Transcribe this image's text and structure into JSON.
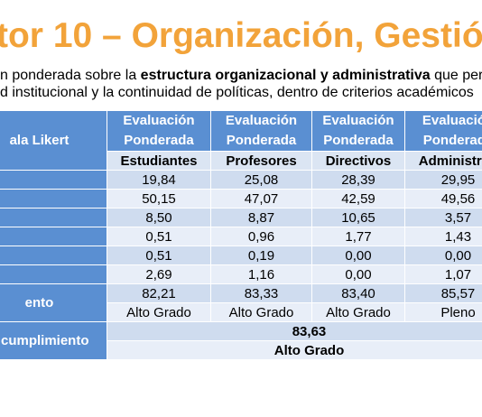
{
  "header": {
    "title": "tor 10 – Organización, Gestió",
    "subtitle_line1": [
      "n ponderada sobre la ",
      "estructura organizacional y administrativa",
      " que perm"
    ],
    "subtitle_line2": "d institucional y la continuidad de políticas, dentro de criterios académicos"
  },
  "table": {
    "corner": "ala Likert",
    "group_headers": [
      "Evaluación Ponderada",
      "Evaluación Ponderada",
      "Evaluación Ponderada",
      "Evaluación Ponderada"
    ],
    "columns": [
      "Estudiantes",
      "Profesores",
      "Directivos",
      "Administrati"
    ],
    "rows": [
      [
        "19,84",
        "25,08",
        "28,39",
        "29,95"
      ],
      [
        "50,15",
        "47,07",
        "42,59",
        "49,56"
      ],
      [
        "8,50",
        "8,87",
        "10,65",
        "3,57"
      ],
      [
        "0,51",
        "0,96",
        "1,77",
        "1,43"
      ],
      [
        "0,51",
        "0,19",
        "0,00",
        "0,00"
      ],
      [
        "2,69",
        "1,16",
        "0,00",
        "1,07"
      ],
      [
        "82,21",
        "83,33",
        "83,40",
        "85,57"
      ],
      [
        "Alto Grado",
        "Alto Grado",
        "Alto Grado",
        "Pleno"
      ]
    ],
    "rows_label": "ento",
    "total_label": "e cumplimiento",
    "total_value": "83,63",
    "total_grade": "Alto Grado"
  }
}
